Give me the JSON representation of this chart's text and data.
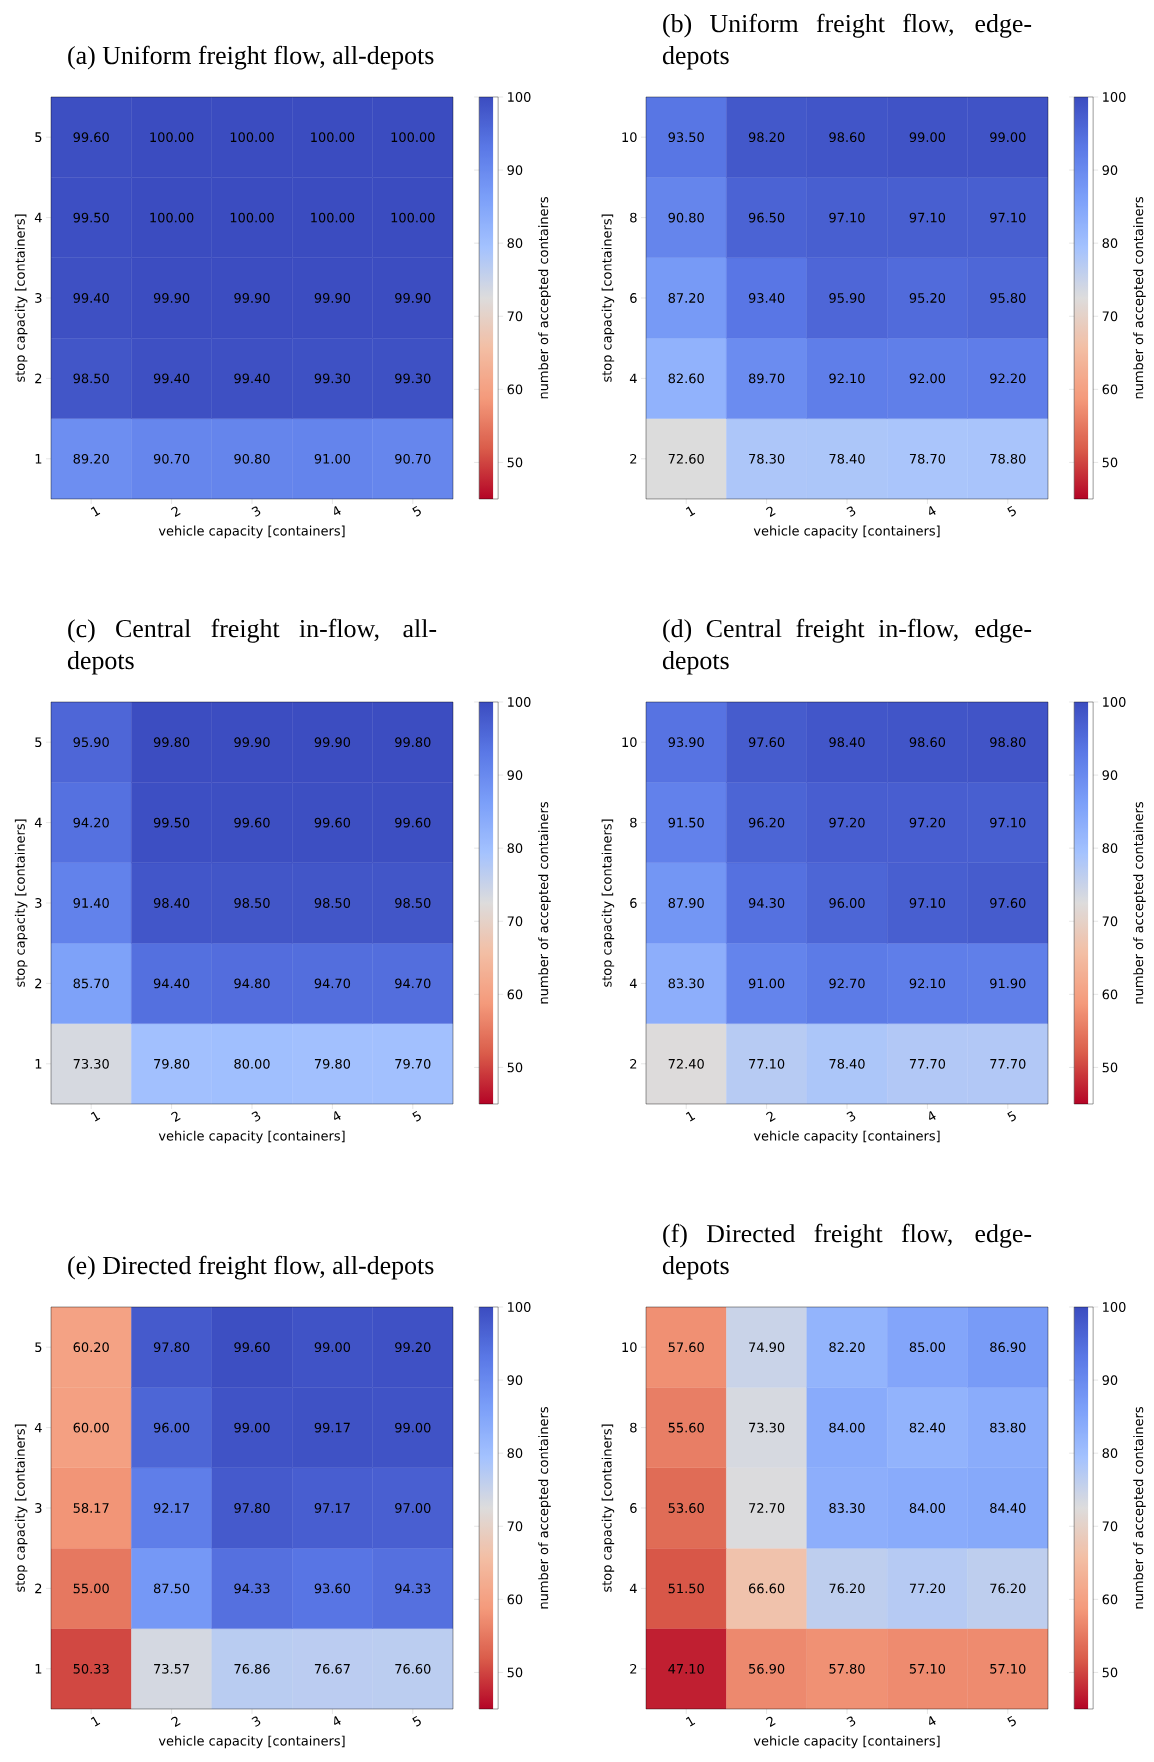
{
  "chart_data": [
    {
      "type": "heatmap",
      "title": "(a) Uniform freight flow, all-depots",
      "xlabel": "vehicle capacity [containers]",
      "ylabel": "stop capacity [containers]",
      "clabel": "number of accepted containers",
      "categories": [
        "1",
        "2",
        "3",
        "4",
        "5"
      ],
      "y_categories": [
        "5",
        "4",
        "3",
        "2",
        "1"
      ],
      "cells": [
        [
          99.6,
          100,
          100,
          100,
          100
        ],
        [
          99.5,
          100,
          100,
          100,
          100
        ],
        [
          99.4,
          99.9,
          99.9,
          99.9,
          99.9
        ],
        [
          98.5,
          99.4,
          99.4,
          99.3,
          99.3
        ],
        [
          89.2,
          90.7,
          90.8,
          91.0,
          90.7
        ]
      ],
      "cell_labels": [
        [
          "99.60",
          "100.00",
          "100.00",
          "100.00",
          "100.00"
        ],
        [
          "99.50",
          "100.00",
          "100.00",
          "100.00",
          "100.00"
        ],
        [
          "99.40",
          "99.90",
          "99.90",
          "99.90",
          "99.90"
        ],
        [
          "98.50",
          "99.40",
          "99.40",
          "99.30",
          "99.30"
        ],
        [
          "89.20",
          "90.70",
          "90.80",
          "91.00",
          "90.70"
        ]
      ],
      "clim": [
        45,
        100
      ],
      "cticks": [
        50,
        60,
        70,
        80,
        90,
        100
      ]
    },
    {
      "type": "heatmap",
      "title": "(b) Uniform freight flow, edge-depots",
      "xlabel": "vehicle capacity [containers]",
      "ylabel": "stop capacity [containers]",
      "clabel": "number of accepted containers",
      "categories": [
        "1",
        "2",
        "3",
        "4",
        "5"
      ],
      "y_categories": [
        "10",
        "8",
        "6",
        "4",
        "2"
      ],
      "cells": [
        [
          93.5,
          98.2,
          98.6,
          99.0,
          99.0
        ],
        [
          90.8,
          96.5,
          97.1,
          97.1,
          97.1
        ],
        [
          87.2,
          93.4,
          95.9,
          95.2,
          95.8
        ],
        [
          82.6,
          89.7,
          92.1,
          92.0,
          92.2
        ],
        [
          72.6,
          78.3,
          78.4,
          78.7,
          78.8
        ]
      ],
      "cell_labels": [
        [
          "93.50",
          "98.20",
          "98.60",
          "99.00",
          "99.00"
        ],
        [
          "90.80",
          "96.50",
          "97.10",
          "97.10",
          "97.10"
        ],
        [
          "87.20",
          "93.40",
          "95.90",
          "95.20",
          "95.80"
        ],
        [
          "82.60",
          "89.70",
          "92.10",
          "92.00",
          "92.20"
        ],
        [
          "72.60",
          "78.30",
          "78.40",
          "78.70",
          "78.80"
        ]
      ],
      "clim": [
        45,
        100
      ],
      "cticks": [
        50,
        60,
        70,
        80,
        90,
        100
      ]
    },
    {
      "type": "heatmap",
      "title": "(c) Central freight in-flow, all-depots",
      "xlabel": "vehicle capacity [containers]",
      "ylabel": "stop capacity [containers]",
      "clabel": "number of accepted containers",
      "categories": [
        "1",
        "2",
        "3",
        "4",
        "5"
      ],
      "y_categories": [
        "5",
        "4",
        "3",
        "2",
        "1"
      ],
      "cells": [
        [
          95.9,
          99.8,
          99.9,
          99.9,
          99.8
        ],
        [
          94.2,
          99.5,
          99.6,
          99.6,
          99.6
        ],
        [
          91.4,
          98.4,
          98.5,
          98.5,
          98.5
        ],
        [
          85.7,
          94.4,
          94.8,
          94.7,
          94.7
        ],
        [
          73.3,
          79.8,
          80.0,
          79.8,
          79.7
        ]
      ],
      "cell_labels": [
        [
          "95.90",
          "99.80",
          "99.90",
          "99.90",
          "99.80"
        ],
        [
          "94.20",
          "99.50",
          "99.60",
          "99.60",
          "99.60"
        ],
        [
          "91.40",
          "98.40",
          "98.50",
          "98.50",
          "98.50"
        ],
        [
          "85.70",
          "94.40",
          "94.80",
          "94.70",
          "94.70"
        ],
        [
          "73.30",
          "79.80",
          "80.00",
          "79.80",
          "79.70"
        ]
      ],
      "clim": [
        45,
        100
      ],
      "cticks": [
        50,
        60,
        70,
        80,
        90,
        100
      ]
    },
    {
      "type": "heatmap",
      "title": "(d) Central freight in-flow, edge-depots",
      "xlabel": "vehicle capacity [containers]",
      "ylabel": "stop capacity [containers]",
      "clabel": "number of accepted containers",
      "categories": [
        "1",
        "2",
        "3",
        "4",
        "5"
      ],
      "y_categories": [
        "10",
        "8",
        "6",
        "4",
        "2"
      ],
      "cells": [
        [
          93.9,
          97.6,
          98.4,
          98.6,
          98.8
        ],
        [
          91.5,
          96.2,
          97.2,
          97.2,
          97.1
        ],
        [
          87.9,
          94.3,
          96.0,
          97.1,
          97.6
        ],
        [
          83.3,
          91.0,
          92.7,
          92.1,
          91.9
        ],
        [
          72.4,
          77.1,
          78.4,
          77.7,
          77.7
        ]
      ],
      "cell_labels": [
        [
          "93.90",
          "97.60",
          "98.40",
          "98.60",
          "98.80"
        ],
        [
          "91.50",
          "96.20",
          "97.20",
          "97.20",
          "97.10"
        ],
        [
          "87.90",
          "94.30",
          "96.00",
          "97.10",
          "97.60"
        ],
        [
          "83.30",
          "91.00",
          "92.70",
          "92.10",
          "91.90"
        ],
        [
          "72.40",
          "77.10",
          "78.40",
          "77.70",
          "77.70"
        ]
      ],
      "clim": [
        45,
        100
      ],
      "cticks": [
        50,
        60,
        70,
        80,
        90,
        100
      ]
    },
    {
      "type": "heatmap",
      "title": "(e) Directed freight flow, all-depots",
      "xlabel": "vehicle capacity [containers]",
      "ylabel": "stop capacity [containers]",
      "clabel": "number of accepted containers",
      "categories": [
        "1",
        "2",
        "3",
        "4",
        "5"
      ],
      "y_categories": [
        "5",
        "4",
        "3",
        "2",
        "1"
      ],
      "cells": [
        [
          60.2,
          97.8,
          99.6,
          99.0,
          99.2
        ],
        [
          60.0,
          96.0,
          99.0,
          99.17,
          99.0
        ],
        [
          58.17,
          92.17,
          97.8,
          97.17,
          97.0
        ],
        [
          55.0,
          87.5,
          94.33,
          93.6,
          94.33
        ],
        [
          50.33,
          73.57,
          76.86,
          76.67,
          76.6
        ]
      ],
      "cell_labels": [
        [
          "60.20",
          "97.80",
          "99.60",
          "99.00",
          "99.20"
        ],
        [
          "60.00",
          "96.00",
          "99.00",
          "99.17",
          "99.00"
        ],
        [
          "58.17",
          "92.17",
          "97.80",
          "97.17",
          "97.00"
        ],
        [
          "55.00",
          "87.50",
          "94.33",
          "93.60",
          "94.33"
        ],
        [
          "50.33",
          "73.57",
          "76.86",
          "76.67",
          "76.60"
        ]
      ],
      "clim": [
        45,
        100
      ],
      "cticks": [
        50,
        60,
        70,
        80,
        90,
        100
      ]
    },
    {
      "type": "heatmap",
      "title": "(f) Directed freight flow, edge-depots",
      "xlabel": "vehicle capacity [containers]",
      "ylabel": "stop capacity [containers]",
      "clabel": "number of accepted containers",
      "categories": [
        "1",
        "2",
        "3",
        "4",
        "5"
      ],
      "y_categories": [
        "10",
        "8",
        "6",
        "4",
        "2"
      ],
      "cells": [
        [
          57.6,
          74.9,
          82.2,
          85.0,
          86.9
        ],
        [
          55.6,
          73.3,
          84.0,
          82.4,
          83.8
        ],
        [
          53.6,
          72.7,
          83.3,
          84.0,
          84.4
        ],
        [
          51.5,
          66.6,
          76.2,
          77.2,
          76.2
        ],
        [
          47.1,
          56.9,
          57.8,
          57.1,
          57.1
        ]
      ],
      "cell_labels": [
        [
          "57.60",
          "74.90",
          "82.20",
          "85.00",
          "86.90"
        ],
        [
          "55.60",
          "73.30",
          "84.00",
          "82.40",
          "83.80"
        ],
        [
          "53.60",
          "72.70",
          "83.30",
          "84.00",
          "84.40"
        ],
        [
          "51.50",
          "66.60",
          "76.20",
          "77.20",
          "76.20"
        ],
        [
          "47.10",
          "56.90",
          "57.80",
          "57.10",
          "57.10"
        ]
      ],
      "clim": [
        45,
        100
      ],
      "cticks": [
        50,
        60,
        70,
        80,
        90,
        100
      ]
    }
  ]
}
